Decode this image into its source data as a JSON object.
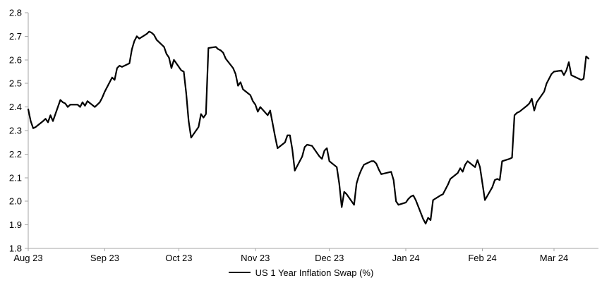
{
  "chart_data": {
    "type": "line",
    "title": "US 1 Year Inflation Swap (%)",
    "legend": {
      "position": "bottom",
      "label": "US 1 Year Inflation Swap (%)"
    },
    "y_axis": {
      "min": 1.8,
      "max": 2.8,
      "step": 0.1,
      "tick_labels": [
        "1.8",
        "1.9",
        "2.0",
        "2.1",
        "2.2",
        "2.3",
        "2.4",
        "2.5",
        "2.6",
        "2.7",
        "2.8"
      ]
    },
    "x_axis": {
      "ticks": [
        {
          "date": "2023-08-01",
          "label": "Aug 23"
        },
        {
          "date": "2023-09-01",
          "label": "Sep 23"
        },
        {
          "date": "2023-10-01",
          "label": "Oct 23"
        },
        {
          "date": "2023-11-01",
          "label": "Nov 23"
        },
        {
          "date": "2023-12-01",
          "label": "Dec 23"
        },
        {
          "date": "2024-01-01",
          "label": "Jan 24"
        },
        {
          "date": "2024-02-01",
          "label": "Feb 24"
        },
        {
          "date": "2024-03-01",
          "label": "Mar 24"
        }
      ]
    },
    "style": {
      "line_color": "#000000",
      "axis_color": "#a6a6a6",
      "background": "#ffffff",
      "grid": false
    },
    "series": [
      {
        "name": "US 1 Year Inflation Swap (%)",
        "color": "#000000",
        "dates": [
          "2023-08-01",
          "2023-08-02",
          "2023-08-03",
          "2023-08-04",
          "2023-08-07",
          "2023-08-08",
          "2023-08-09",
          "2023-08-10",
          "2023-08-11",
          "2023-08-14",
          "2023-08-15",
          "2023-08-16",
          "2023-08-17",
          "2023-08-18",
          "2023-08-21",
          "2023-08-22",
          "2023-08-23",
          "2023-08-24",
          "2023-08-25",
          "2023-08-28",
          "2023-08-29",
          "2023-08-30",
          "2023-08-31",
          "2023-09-01",
          "2023-09-04",
          "2023-09-05",
          "2023-09-06",
          "2023-09-07",
          "2023-09-08",
          "2023-09-11",
          "2023-09-12",
          "2023-09-13",
          "2023-09-14",
          "2023-09-15",
          "2023-09-18",
          "2023-09-19",
          "2023-09-20",
          "2023-09-21",
          "2023-09-22",
          "2023-09-25",
          "2023-09-26",
          "2023-09-27",
          "2023-09-28",
          "2023-09-29",
          "2023-10-02",
          "2023-10-03",
          "2023-10-04",
          "2023-10-05",
          "2023-10-06",
          "2023-10-09",
          "2023-10-10",
          "2023-10-11",
          "2023-10-12",
          "2023-10-13",
          "2023-10-16",
          "2023-10-17",
          "2023-10-18",
          "2023-10-19",
          "2023-10-20",
          "2023-10-23",
          "2023-10-24",
          "2023-10-25",
          "2023-10-26",
          "2023-10-27",
          "2023-10-30",
          "2023-10-31",
          "2023-11-01",
          "2023-11-02",
          "2023-11-03",
          "2023-11-06",
          "2023-11-07",
          "2023-11-08",
          "2023-11-09",
          "2023-11-10",
          "2023-11-13",
          "2023-11-14",
          "2023-11-15",
          "2023-11-16",
          "2023-11-17",
          "2023-11-20",
          "2023-11-21",
          "2023-11-22",
          "2023-11-24",
          "2023-11-27",
          "2023-11-28",
          "2023-11-29",
          "2023-11-30",
          "2023-12-01",
          "2023-12-04",
          "2023-12-05",
          "2023-12-06",
          "2023-12-07",
          "2023-12-08",
          "2023-12-11",
          "2023-12-12",
          "2023-12-13",
          "2023-12-14",
          "2023-12-15",
          "2023-12-18",
          "2023-12-19",
          "2023-12-20",
          "2023-12-21",
          "2023-12-22",
          "2023-12-26",
          "2023-12-27",
          "2023-12-28",
          "2023-12-29",
          "2024-01-01",
          "2024-01-02",
          "2024-01-03",
          "2024-01-04",
          "2024-01-05",
          "2024-01-08",
          "2024-01-09",
          "2024-01-10",
          "2024-01-11",
          "2024-01-12",
          "2024-01-15",
          "2024-01-16",
          "2024-01-17",
          "2024-01-18",
          "2024-01-19",
          "2024-01-22",
          "2024-01-23",
          "2024-01-24",
          "2024-01-25",
          "2024-01-26",
          "2024-01-29",
          "2024-01-30",
          "2024-01-31",
          "2024-02-01",
          "2024-02-02",
          "2024-02-05",
          "2024-02-06",
          "2024-02-07",
          "2024-02-08",
          "2024-02-09",
          "2024-02-12",
          "2024-02-13",
          "2024-02-14",
          "2024-02-15",
          "2024-02-16",
          "2024-02-19",
          "2024-02-20",
          "2024-02-21",
          "2024-02-22",
          "2024-02-23",
          "2024-02-26",
          "2024-02-27",
          "2024-02-28",
          "2024-02-29",
          "2024-03-01",
          "2024-03-04",
          "2024-03-05",
          "2024-03-06",
          "2024-03-07",
          "2024-03-08",
          "2024-03-11",
          "2024-03-12",
          "2024-03-13",
          "2024-03-14",
          "2024-03-15"
        ],
        "values": [
          2.39,
          2.34,
          2.31,
          2.315,
          2.34,
          2.35,
          2.335,
          2.365,
          2.34,
          2.43,
          2.42,
          2.415,
          2.4,
          2.41,
          2.41,
          2.4,
          2.42,
          2.405,
          2.425,
          2.4,
          2.41,
          2.42,
          2.44,
          2.465,
          2.525,
          2.515,
          2.565,
          2.575,
          2.57,
          2.585,
          2.645,
          2.68,
          2.7,
          2.69,
          2.71,
          2.72,
          2.715,
          2.705,
          2.685,
          2.655,
          2.625,
          2.61,
          2.565,
          2.6,
          2.555,
          2.55,
          2.46,
          2.34,
          2.27,
          2.315,
          2.37,
          2.355,
          2.37,
          2.65,
          2.655,
          2.645,
          2.64,
          2.63,
          2.605,
          2.565,
          2.54,
          2.49,
          2.505,
          2.475,
          2.45,
          2.425,
          2.41,
          2.38,
          2.4,
          2.365,
          2.385,
          2.33,
          2.275,
          2.225,
          2.25,
          2.28,
          2.28,
          2.22,
          2.13,
          2.19,
          2.23,
          2.24,
          2.235,
          2.19,
          2.18,
          2.215,
          2.225,
          2.17,
          2.145,
          2.075,
          1.975,
          2.04,
          2.03,
          1.985,
          2.075,
          2.11,
          2.135,
          2.155,
          2.17,
          2.17,
          2.16,
          2.135,
          2.115,
          2.125,
          2.09,
          2.0,
          1.985,
          1.995,
          2.01,
          2.02,
          2.025,
          2.005,
          1.925,
          1.905,
          1.93,
          1.92,
          2.005,
          2.025,
          2.03,
          2.05,
          2.07,
          2.095,
          2.12,
          2.14,
          2.125,
          2.155,
          2.17,
          2.145,
          2.175,
          2.145,
          2.075,
          2.005,
          2.06,
          2.09,
          2.095,
          2.09,
          2.17,
          2.18,
          2.185,
          2.365,
          2.375,
          2.38,
          2.405,
          2.415,
          2.435,
          2.385,
          2.42,
          2.465,
          2.5,
          2.52,
          2.54,
          2.55,
          2.555,
          2.535,
          2.555,
          2.59,
          2.535,
          2.52,
          2.515,
          2.52,
          2.615,
          2.605
        ]
      }
    ]
  }
}
